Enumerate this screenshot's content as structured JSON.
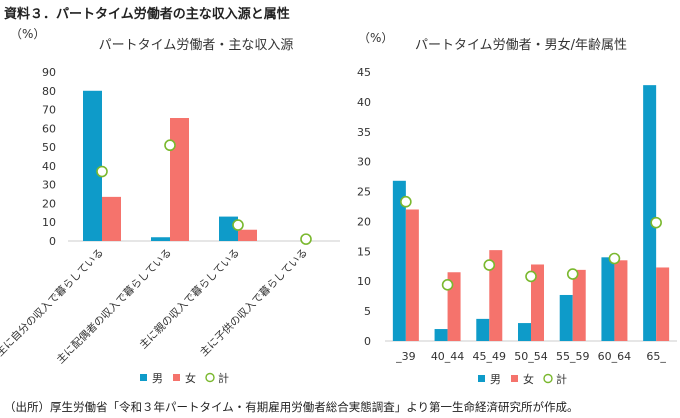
{
  "figure_title": "資料３．パートタイム労働者の主な収入源と属性",
  "source_note": "（出所）厚生労働省「令和３年パートタイム・有期雇用労働者総合実態調査」より第一生命経済研究所が作成。",
  "colors": {
    "male": "#0e9bc9",
    "female": "#f5736c",
    "total_marker_stroke": "#7ab82e",
    "total_marker_fill": "#ffffff",
    "axis": "#cccccc",
    "text": "#333333"
  },
  "chart_data": [
    {
      "type": "bar",
      "title": "パートタイム労働者・主な収入源",
      "ylabel": "（%）",
      "ylim": [
        0,
        90
      ],
      "yticks": [
        0,
        10,
        20,
        30,
        40,
        50,
        60,
        70,
        80,
        90
      ],
      "categories": [
        "主に自分の収入で暮らしている",
        "主に配偶者の収入で暮らしている",
        "主に親の収入で暮らしている",
        "主に子供の収入で暮らしている"
      ],
      "series": [
        {
          "name": "男",
          "kind": "bar",
          "values": [
            80,
            2,
            13,
            0
          ]
        },
        {
          "name": "女",
          "kind": "bar",
          "values": [
            23.5,
            65.5,
            6,
            0
          ]
        },
        {
          "name": "計",
          "kind": "marker",
          "values": [
            37,
            51,
            8.5,
            1
          ]
        }
      ],
      "legend": "bottom",
      "grid": false
    },
    {
      "type": "bar",
      "title": "パートタイム労働者・男女/年齢属性",
      "ylabel": "（%）",
      "ylim": [
        0,
        45
      ],
      "yticks": [
        0,
        5,
        10,
        15,
        20,
        25,
        30,
        35,
        40,
        45
      ],
      "categories": [
        "_39",
        "40_44",
        "45_49",
        "50_54",
        "55_59",
        "60_64",
        "65_"
      ],
      "series": [
        {
          "name": "男",
          "kind": "bar",
          "values": [
            26.8,
            2,
            3.7,
            3,
            7.7,
            14,
            42.8
          ]
        },
        {
          "name": "女",
          "kind": "bar",
          "values": [
            22,
            11.5,
            15.2,
            12.8,
            11.9,
            13.5,
            12.3
          ]
        },
        {
          "name": "計",
          "kind": "marker",
          "values": [
            23.3,
            9.4,
            12.7,
            10.8,
            11.2,
            13.8,
            19.8
          ]
        }
      ],
      "legend": "bottom",
      "grid": false
    }
  ]
}
